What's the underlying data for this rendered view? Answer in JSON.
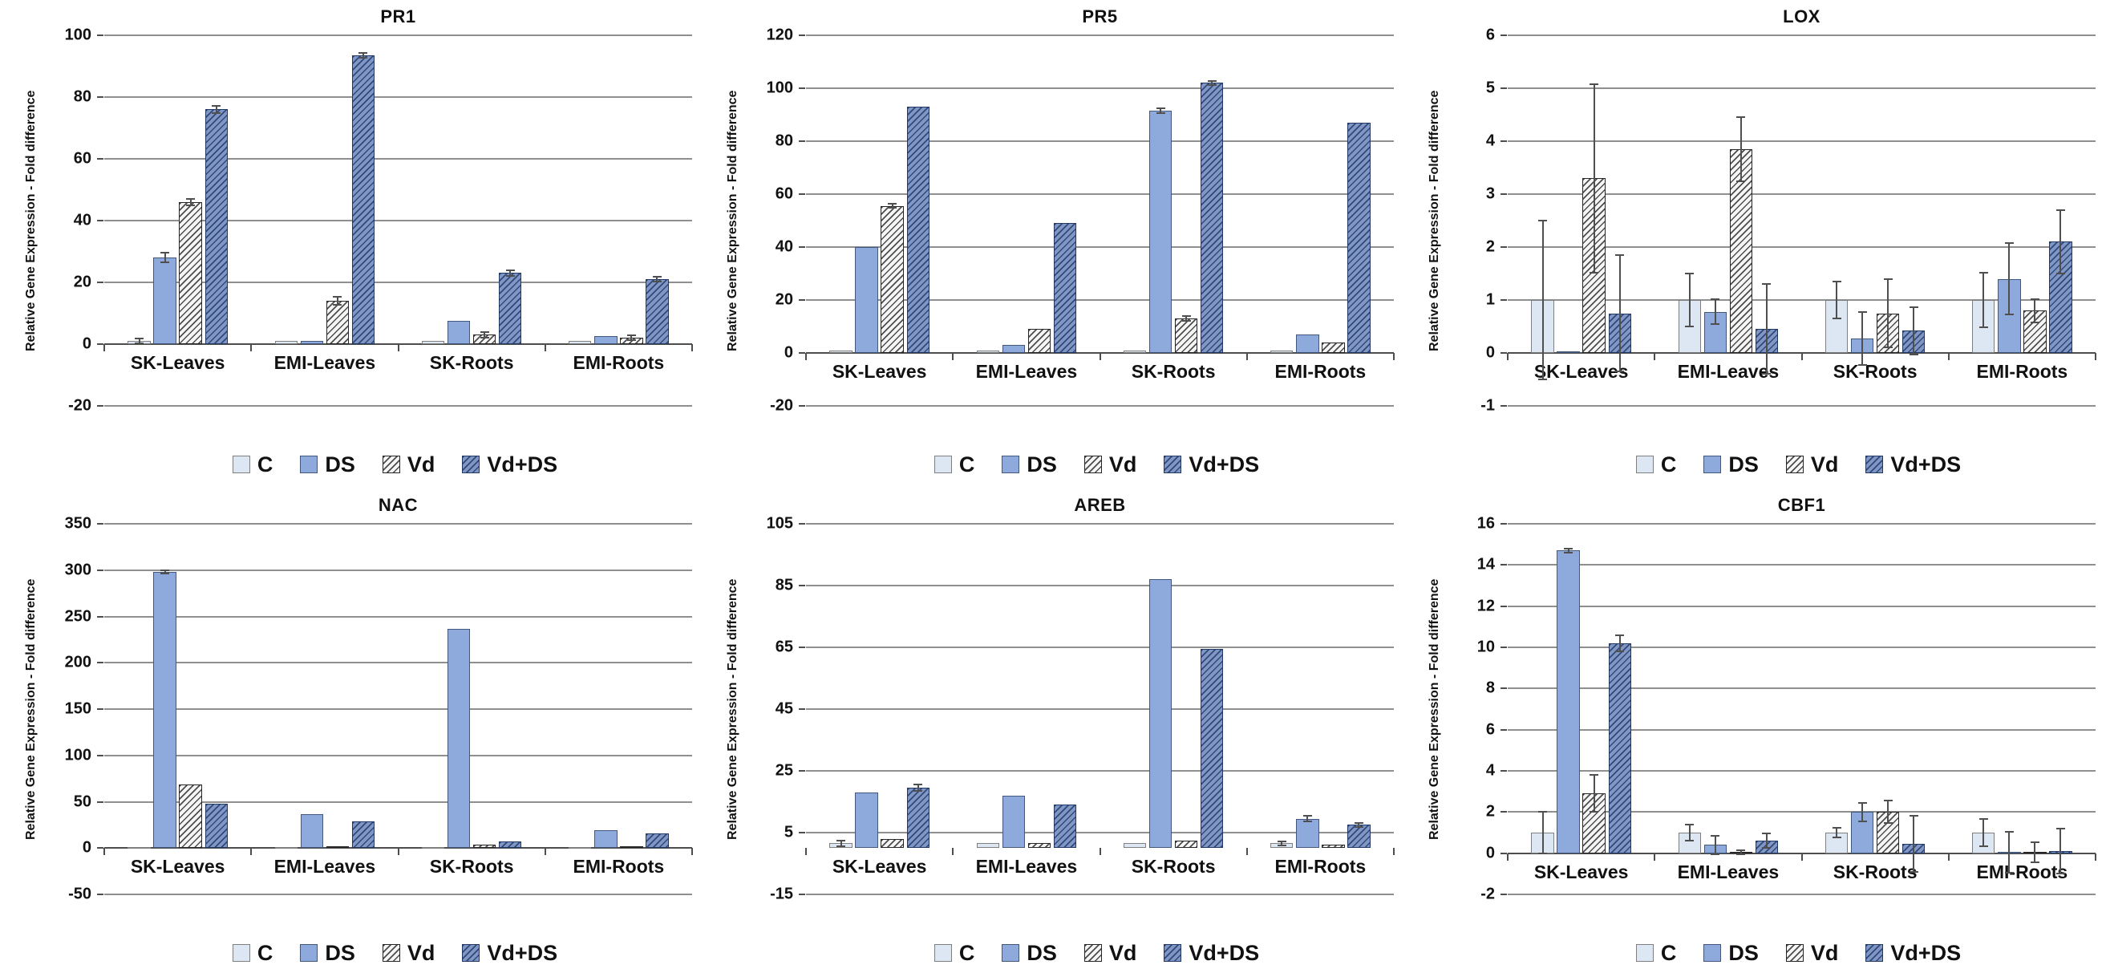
{
  "figure": {
    "background": "#ffffff",
    "ylabel": "Relative Gene Expression - Fold difference",
    "categories": [
      "SK-Leaves",
      "EMI-Leaves",
      "SK-Roots",
      "EMI-Roots"
    ],
    "legend_labels": [
      "C",
      "DS",
      "Vd",
      "Vd+DS"
    ]
  },
  "colors": {
    "C": {
      "fill": "#dde6f3",
      "hatch": null,
      "border": "#7f7f7f"
    },
    "DS": {
      "fill": "#8ea9db",
      "hatch": null,
      "border": "#41587c"
    },
    "Vd": {
      "fill": "#f5f5f5",
      "hatch": "#4d4d4d",
      "border": "#262626"
    },
    "Vd+DS": {
      "fill": "#8096c4",
      "hatch": "#31497a",
      "border": "#1f3864"
    },
    "gridline": "#8f8f8f",
    "axis": "#4d4d4d"
  },
  "chart_data": [
    {
      "type": "bar",
      "title": "PR1",
      "ylabel": "Relative Gene Expression - Fold difference",
      "categories": [
        "SK-Leaves",
        "EMI-Leaves",
        "SK-Roots",
        "EMI-Roots"
      ],
      "ylim": [
        -20,
        100
      ],
      "yticks": [
        -20,
        0,
        20,
        40,
        60,
        80,
        100
      ],
      "baseline": 0,
      "grid": true,
      "legend_position": "bottom",
      "series": [
        {
          "name": "C",
          "values": [
            1,
            1,
            1,
            1
          ],
          "errors": [
            0.8,
            0.3,
            0.5,
            0.3
          ]
        },
        {
          "name": "DS",
          "values": [
            28,
            1,
            7.5,
            2.5
          ],
          "errors": [
            1.5,
            0.3,
            0.5,
            0.5
          ]
        },
        {
          "name": "Vd",
          "values": [
            46,
            14,
            3,
            2
          ],
          "errors": [
            1.0,
            1.2,
            0.8,
            0.8
          ]
        },
        {
          "name": "Vd+DS",
          "values": [
            76,
            93.5,
            23,
            21
          ],
          "errors": [
            1.2,
            0.8,
            0.8,
            0.8
          ]
        }
      ]
    },
    {
      "type": "bar",
      "title": "PR5",
      "ylabel": "Relative Gene Expression - Fold difference",
      "categories": [
        "SK-Leaves",
        "EMI-Leaves",
        "SK-Roots",
        "EMI-Roots"
      ],
      "ylim": [
        -20,
        120
      ],
      "yticks": [
        -20,
        0,
        20,
        40,
        60,
        80,
        100,
        120
      ],
      "baseline": 0,
      "grid": true,
      "legend_position": "bottom",
      "series": [
        {
          "name": "C",
          "values": [
            1,
            1,
            1,
            1
          ],
          "errors": [
            0.5,
            0.3,
            0.3,
            0.4
          ]
        },
        {
          "name": "DS",
          "values": [
            40,
            3,
            91.5,
            7
          ],
          "errors": [
            0.5,
            0.3,
            0.8,
            0.5
          ]
        },
        {
          "name": "Vd",
          "values": [
            55.5,
            9,
            13,
            4
          ],
          "errors": [
            0.8,
            0.5,
            0.8,
            0.4
          ]
        },
        {
          "name": "Vd+DS",
          "values": [
            93,
            49,
            102,
            87
          ],
          "errors": [
            0.5,
            0.5,
            0.8,
            0.5
          ]
        }
      ]
    },
    {
      "type": "bar",
      "title": "LOX",
      "ylabel": "Relative Gene Expression - Fold difference",
      "categories": [
        "SK-Leaves",
        "EMI-Leaves",
        "SK-Roots",
        "EMI-Roots"
      ],
      "ylim": [
        -1,
        6
      ],
      "yticks": [
        -1,
        0,
        1,
        2,
        3,
        4,
        5,
        6
      ],
      "baseline": 0,
      "grid": true,
      "legend_position": "bottom",
      "series": [
        {
          "name": "C",
          "values": [
            1,
            1,
            1,
            1
          ],
          "errors": [
            1.5,
            0.5,
            0.35,
            0.52
          ]
        },
        {
          "name": "DS",
          "values": [
            0.03,
            0.78,
            0.28,
            1.4
          ],
          "errors": [
            0.02,
            0.23,
            0.5,
            0.68
          ]
        },
        {
          "name": "Vd",
          "values": [
            3.3,
            3.85,
            0.75,
            0.8
          ],
          "errors": [
            1.78,
            0.6,
            0.65,
            0.22
          ]
        },
        {
          "name": "Vd+DS",
          "values": [
            0.75,
            0.45,
            0.42,
            2.1
          ],
          "errors": [
            1.1,
            0.85,
            0.45,
            0.6
          ]
        }
      ]
    },
    {
      "type": "bar",
      "title": "NAC",
      "ylabel": "Relative Gene Expression - Fold difference",
      "categories": [
        "SK-Leaves",
        "EMI-Leaves",
        "SK-Roots",
        "EMI-Roots"
      ],
      "ylim": [
        -50,
        350
      ],
      "yticks": [
        -50,
        0,
        50,
        100,
        150,
        200,
        250,
        300,
        350
      ],
      "baseline": 0,
      "grid": true,
      "legend_position": "bottom",
      "series": [
        {
          "name": "C",
          "values": [
            1,
            1,
            1,
            1
          ],
          "errors": [
            0.3,
            0.3,
            0.3,
            0.3
          ]
        },
        {
          "name": "DS",
          "values": [
            298,
            37,
            237,
            19
          ],
          "errors": [
            2.0,
            0.8,
            1.5,
            0.8
          ]
        },
        {
          "name": "Vd",
          "values": [
            69,
            2,
            4,
            2
          ],
          "errors": [
            1.5,
            0.5,
            0.8,
            0.5
          ]
        },
        {
          "name": "Vd+DS",
          "values": [
            48,
            29,
            7,
            16
          ],
          "errors": [
            1.2,
            0.8,
            0.8,
            0.8
          ]
        }
      ]
    },
    {
      "type": "bar",
      "title": "AREB",
      "ylabel": "Relative Gene Expression - Fold difference",
      "categories": [
        "SK-Leaves",
        "EMI-Leaves",
        "SK-Roots",
        "EMI-Roots"
      ],
      "ylim": [
        -15,
        105
      ],
      "yticks": [
        -15,
        5,
        25,
        45,
        65,
        85,
        105
      ],
      "baseline": 0,
      "grid": true,
      "legend_position": "bottom",
      "series": [
        {
          "name": "C",
          "values": [
            1.5,
            1.5,
            1.5,
            1.5
          ],
          "errors": [
            0.8,
            0.4,
            0.5,
            0.6
          ]
        },
        {
          "name": "DS",
          "values": [
            18,
            17,
            87,
            9.5
          ],
          "errors": [
            0.4,
            0.4,
            0.5,
            0.9
          ]
        },
        {
          "name": "Vd",
          "values": [
            3,
            1.5,
            2.5,
            1
          ],
          "errors": [
            0.5,
            0.4,
            0.4,
            0.3
          ]
        },
        {
          "name": "Vd+DS",
          "values": [
            19.5,
            14,
            64.5,
            7.5
          ],
          "errors": [
            1.0,
            0.4,
            0.5,
            0.7
          ]
        }
      ]
    },
    {
      "type": "bar",
      "title": "CBF1",
      "ylabel": "Relative Gene Expression - Fold difference",
      "categories": [
        "SK-Leaves",
        "EMI-Leaves",
        "SK-Roots",
        "EMI-Roots"
      ],
      "ylim": [
        -2,
        16
      ],
      "yticks": [
        -2,
        0,
        2,
        4,
        6,
        8,
        10,
        12,
        14,
        16
      ],
      "baseline": 0,
      "grid": true,
      "legend_position": "bottom",
      "series": [
        {
          "name": "C",
          "values": [
            1,
            1,
            1,
            1
          ],
          "errors": [
            1.0,
            0.4,
            0.25,
            0.65
          ]
        },
        {
          "name": "DS",
          "values": [
            14.7,
            0.4,
            2,
            0.05
          ],
          "errors": [
            0.1,
            0.45,
            0.45,
            1.0
          ]
        },
        {
          "name": "Vd",
          "values": [
            2.9,
            0.05,
            2,
            0.05
          ],
          "errors": [
            0.9,
            0.1,
            0.55,
            0.5
          ]
        },
        {
          "name": "Vd+DS",
          "values": [
            10.2,
            0.6,
            0.45,
            0.1
          ],
          "errors": [
            0.4,
            0.35,
            1.35,
            1.1
          ]
        }
      ]
    }
  ]
}
